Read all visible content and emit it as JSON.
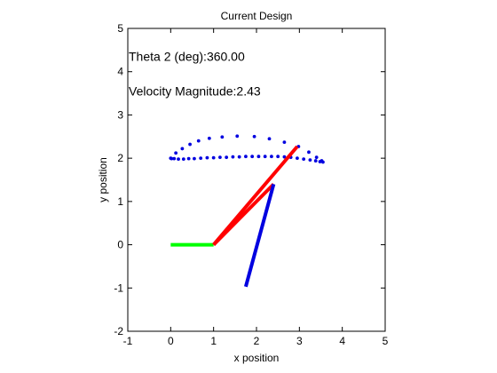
{
  "chart_data": {
    "type": "line",
    "title": "Current Design",
    "xlabel": "x position",
    "ylabel": "y position",
    "xlim": [
      -1,
      5
    ],
    "ylim": [
      -2,
      5
    ],
    "xticks": [
      -1,
      0,
      1,
      2,
      3,
      4,
      5
    ],
    "yticks": [
      -2,
      -1,
      0,
      1,
      2,
      3,
      4,
      5
    ],
    "xtick_labels": [
      "-1",
      "0",
      "1",
      "2",
      "3",
      "4",
      "5"
    ],
    "ytick_labels": [
      "-2",
      "-1",
      "0",
      "1",
      "2",
      "3",
      "4",
      "5"
    ],
    "grid": false,
    "annotations": [
      {
        "name": "theta-annotation",
        "text": "Theta 2 (deg):360.00",
        "x": -1,
        "y": 4.35
      },
      {
        "name": "velocity-annotation",
        "text": "Velocity Magnitude:2.43",
        "x": -1,
        "y": 3.55
      }
    ],
    "series": [
      {
        "role": "coupler-curve-points",
        "style": "dots",
        "color": "#0000e0",
        "points": [
          [
            0.0,
            2.0
          ],
          [
            0.12,
            2.12
          ],
          [
            0.27,
            2.22
          ],
          [
            0.45,
            2.32
          ],
          [
            0.65,
            2.4
          ],
          [
            0.9,
            2.46
          ],
          [
            1.2,
            2.49
          ],
          [
            1.55,
            2.51
          ],
          [
            1.95,
            2.5
          ],
          [
            2.3,
            2.45
          ],
          [
            2.65,
            2.37
          ],
          [
            2.98,
            2.27
          ],
          [
            3.22,
            2.14
          ],
          [
            3.4,
            2.02
          ],
          [
            3.52,
            1.94
          ],
          [
            3.55,
            1.91
          ],
          [
            3.48,
            1.92
          ],
          [
            3.38,
            1.94
          ],
          [
            3.25,
            1.96
          ],
          [
            3.1,
            1.98
          ],
          [
            2.95,
            2.0
          ],
          [
            2.8,
            2.02
          ],
          [
            2.65,
            2.03
          ],
          [
            2.5,
            2.04
          ],
          [
            2.35,
            2.04
          ],
          [
            2.2,
            2.04
          ],
          [
            2.05,
            2.04
          ],
          [
            1.9,
            2.04
          ],
          [
            1.75,
            2.04
          ],
          [
            1.6,
            2.03
          ],
          [
            1.45,
            2.03
          ],
          [
            1.3,
            2.02
          ],
          [
            1.15,
            2.02
          ],
          [
            1.0,
            2.01
          ],
          [
            0.85,
            2.01
          ],
          [
            0.7,
            2.0
          ],
          [
            0.55,
            1.99
          ],
          [
            0.42,
            1.99
          ],
          [
            0.3,
            1.98
          ],
          [
            0.18,
            1.98
          ],
          [
            0.08,
            1.99
          ],
          [
            0.02,
            1.99
          ]
        ]
      },
      {
        "role": "ground-link",
        "style": "line",
        "color": "#00ff00",
        "points": [
          [
            0.0,
            0.0
          ],
          [
            1.0,
            0.0
          ]
        ]
      },
      {
        "role": "coupler-link-a",
        "style": "line",
        "color": "#ff0000",
        "points": [
          [
            1.0,
            0.0
          ],
          [
            2.95,
            2.27
          ]
        ]
      },
      {
        "role": "coupler-link-b",
        "style": "line",
        "color": "#ff0000",
        "points": [
          [
            1.0,
            0.0
          ],
          [
            2.4,
            1.4
          ]
        ]
      },
      {
        "role": "rocker-link",
        "style": "line",
        "color": "#0000e0",
        "points": [
          [
            1.75,
            -0.97
          ],
          [
            2.4,
            1.4
          ]
        ]
      }
    ]
  }
}
